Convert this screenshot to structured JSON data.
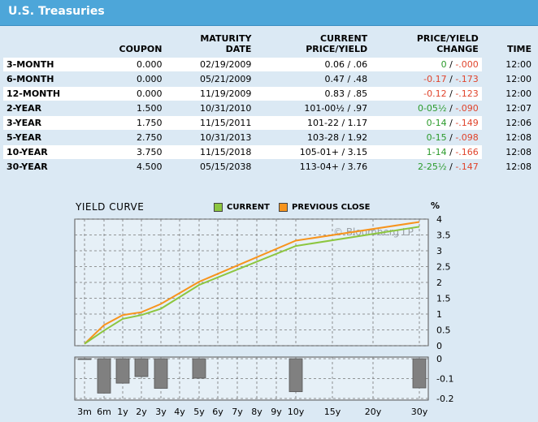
{
  "header": {
    "title": "U.S. Treasuries"
  },
  "table": {
    "columns": [
      "COUPON",
      "MATURITY\nDATE",
      "CURRENT\nPRICE/YIELD",
      "PRICE/YIELD\nCHANGE",
      "TIME"
    ],
    "rows": [
      {
        "name": "3-MONTH",
        "coupon": "0.000",
        "maturity": "02/19/2009",
        "price_yield": "0.06 / .06",
        "chg_price": "0",
        "chg_yield": "-.000",
        "chg_price_dir": "pos",
        "time": "12:00"
      },
      {
        "name": "6-MONTH",
        "coupon": "0.000",
        "maturity": "05/21/2009",
        "price_yield": "0.47 / .48",
        "chg_price": "-0.17",
        "chg_yield": "-.173",
        "chg_price_dir": "neg",
        "time": "12:00"
      },
      {
        "name": "12-MONTH",
        "coupon": "0.000",
        "maturity": "11/19/2009",
        "price_yield": "0.83 / .85",
        "chg_price": "-0.12",
        "chg_yield": "-.123",
        "chg_price_dir": "neg",
        "time": "12:00"
      },
      {
        "name": "2-YEAR",
        "coupon": "1.500",
        "maturity": "10/31/2010",
        "price_yield": "101-00½ / .97",
        "chg_price": "0-05½",
        "chg_yield": "-.090",
        "chg_price_dir": "pos",
        "time": "12:07"
      },
      {
        "name": "3-YEAR",
        "coupon": "1.750",
        "maturity": "11/15/2011",
        "price_yield": "101-22 / 1.17",
        "chg_price": "0-14",
        "chg_yield": "-.149",
        "chg_price_dir": "pos",
        "time": "12:06"
      },
      {
        "name": "5-YEAR",
        "coupon": "2.750",
        "maturity": "10/31/2013",
        "price_yield": "103-28 / 1.92",
        "chg_price": "0-15",
        "chg_yield": "-.098",
        "chg_price_dir": "pos",
        "time": "12:08"
      },
      {
        "name": "10-YEAR",
        "coupon": "3.750",
        "maturity": "11/15/2018",
        "price_yield": "105-01+ / 3.15",
        "chg_price": "1-14",
        "chg_yield": "-.166",
        "chg_price_dir": "pos",
        "time": "12:08"
      },
      {
        "name": "30-YEAR",
        "coupon": "4.500",
        "maturity": "05/15/2038",
        "price_yield": "113-04+ / 3.76",
        "chg_price": "2-25½",
        "chg_yield": "-.147",
        "chg_price_dir": "pos",
        "time": "12:08"
      }
    ]
  },
  "chart_data": {
    "type": "line",
    "title": "YIELD CURVE",
    "unit": "%",
    "watermark": "© Bloomberg LP",
    "x": [
      "3m",
      "6m",
      "1y",
      "2y",
      "3y",
      "4y",
      "5y",
      "6y",
      "7y",
      "8y",
      "9y",
      "10y",
      "15y",
      "20y",
      "30y"
    ],
    "x_years": [
      0.25,
      0.5,
      1,
      2,
      3,
      4,
      5,
      6,
      7,
      8,
      9,
      10,
      15,
      20,
      30
    ],
    "series": [
      {
        "name": "CURRENT",
        "color": "#8cc63f",
        "points": [
          [
            0.25,
            0.06
          ],
          [
            0.5,
            0.48
          ],
          [
            1,
            0.85
          ],
          [
            2,
            0.97
          ],
          [
            3,
            1.17
          ],
          [
            5,
            1.92
          ],
          [
            10,
            3.15
          ],
          [
            30,
            3.76
          ]
        ]
      },
      {
        "name": "PREVIOUS CLOSE",
        "color": "#f7941d",
        "points": [
          [
            0.25,
            0.06
          ],
          [
            0.5,
            0.65
          ],
          [
            1,
            0.97
          ],
          [
            2,
            1.06
          ],
          [
            3,
            1.32
          ],
          [
            5,
            2.02
          ],
          [
            10,
            3.32
          ],
          [
            30,
            3.91
          ]
        ]
      }
    ],
    "ylim": [
      0,
      4
    ],
    "yticks": [
      "0",
      "0.5",
      "1",
      "1.5",
      "2",
      "2.5",
      "3",
      "3.5",
      "4"
    ],
    "grid": true,
    "legend": "top",
    "change_chart": {
      "type": "bar",
      "color": "#808080",
      "ylim": [
        -0.2,
        0.0
      ],
      "yticks": [
        "0",
        "-0.1",
        "-0.2"
      ],
      "values": [
        [
          0.25,
          0.0
        ],
        [
          0.5,
          -0.173
        ],
        [
          1,
          -0.123
        ],
        [
          2,
          -0.09
        ],
        [
          3,
          -0.149
        ],
        [
          5,
          -0.098
        ],
        [
          10,
          -0.166
        ],
        [
          30,
          -0.147
        ]
      ]
    }
  }
}
